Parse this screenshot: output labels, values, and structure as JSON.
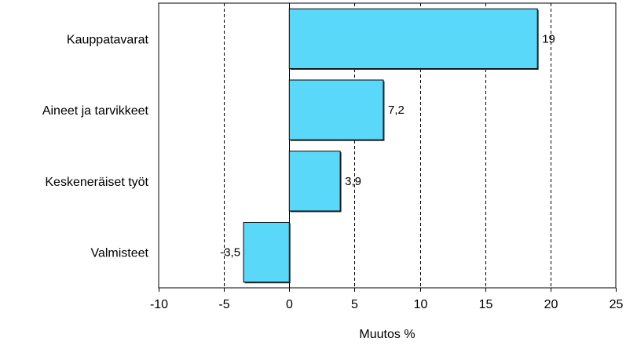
{
  "chart_data": {
    "type": "bar",
    "orientation": "horizontal",
    "categories": [
      "Kauppatavarat",
      "Aineet ja tarvikkeet",
      "Keskeneräiset työt",
      "Valmisteet"
    ],
    "values": [
      19,
      7.2,
      3.9,
      -3.5
    ],
    "value_labels": [
      "19",
      "7,2",
      "3,9",
      "-3,5"
    ],
    "xlabel": "Muutos %",
    "ylabel": "",
    "xlim": [
      -10,
      25
    ],
    "xticks": [
      -10,
      -5,
      0,
      5,
      10,
      15,
      20,
      25
    ],
    "grid": "vertical dashed",
    "legend": "none",
    "bar_color": "#5ad8fa",
    "bar_edge_color": "#000000"
  }
}
